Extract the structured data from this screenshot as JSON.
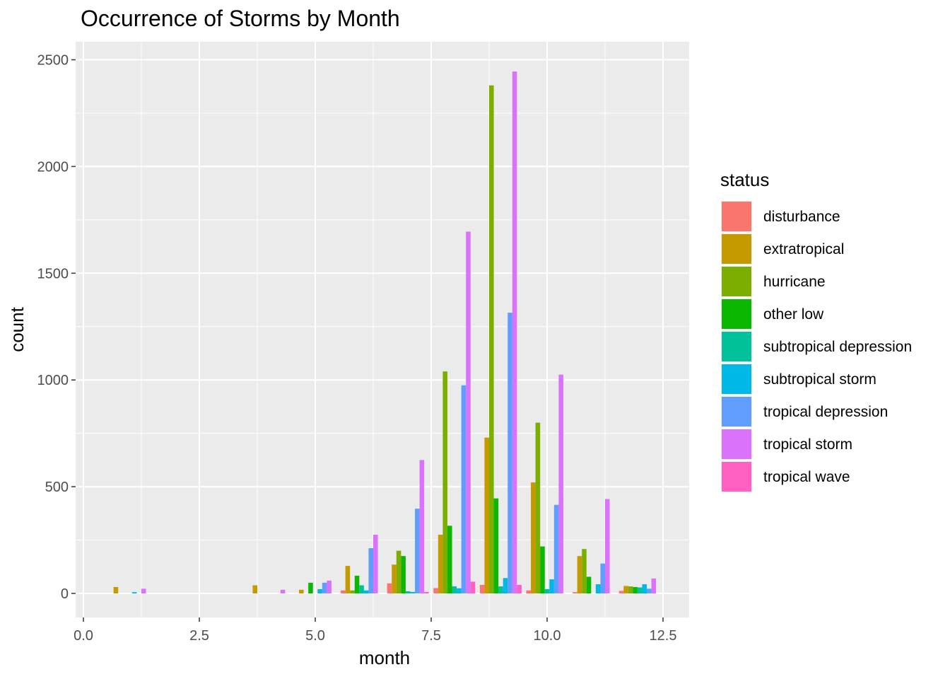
{
  "chart_data": {
    "type": "bar",
    "title": "Occurrence of Storms by Month",
    "xlabel": "month",
    "ylabel": "count",
    "xlim": [
      0,
      12.5
    ],
    "ylim": [
      0,
      2500
    ],
    "x_ticks": [
      "0.0",
      "2.5",
      "5.0",
      "7.5",
      "10.0",
      "12.5"
    ],
    "y_ticks": [
      "0",
      "500",
      "1000",
      "1500",
      "2000",
      "2500"
    ],
    "grid": true,
    "legend_title": "status",
    "legend_position": "right",
    "categories": [
      1,
      4,
      5,
      6,
      7,
      8,
      9,
      10,
      11,
      12
    ],
    "series": [
      {
        "name": "disturbance",
        "color": "#F8766D",
        "values": [
          0,
          0,
          0,
          14,
          47,
          25,
          40,
          14,
          6,
          12
        ]
      },
      {
        "name": "extratropical",
        "color": "#C49A00",
        "values": [
          30,
          38,
          17,
          129,
          135,
          275,
          730,
          520,
          175,
          35
        ]
      },
      {
        "name": "hurricane",
        "color": "#7CAE00",
        "values": [
          0,
          0,
          0,
          14,
          200,
          1040,
          2380,
          800,
          208,
          33
        ]
      },
      {
        "name": "other low",
        "color": "#0CB702",
        "values": [
          0,
          0,
          50,
          83,
          175,
          317,
          445,
          220,
          78,
          30
        ]
      },
      {
        "name": "subtropical depression",
        "color": "#00C19A",
        "values": [
          0,
          0,
          0,
          38,
          10,
          33,
          33,
          20,
          0,
          28
        ]
      },
      {
        "name": "subtropical storm",
        "color": "#00B8E7",
        "values": [
          6,
          0,
          20,
          14,
          7,
          24,
          72,
          66,
          43,
          43
        ]
      },
      {
        "name": "tropical depression",
        "color": "#619CFF",
        "values": [
          0,
          0,
          50,
          212,
          397,
          975,
          1315,
          415,
          140,
          22
        ]
      },
      {
        "name": "tropical storm",
        "color": "#DB72FB",
        "values": [
          22,
          17,
          60,
          275,
          625,
          1695,
          2445,
          1025,
          442,
          70
        ]
      },
      {
        "name": "tropical wave",
        "color": "#FF61C3",
        "values": [
          0,
          0,
          0,
          0,
          7,
          55,
          40,
          0,
          0,
          0
        ]
      }
    ]
  }
}
